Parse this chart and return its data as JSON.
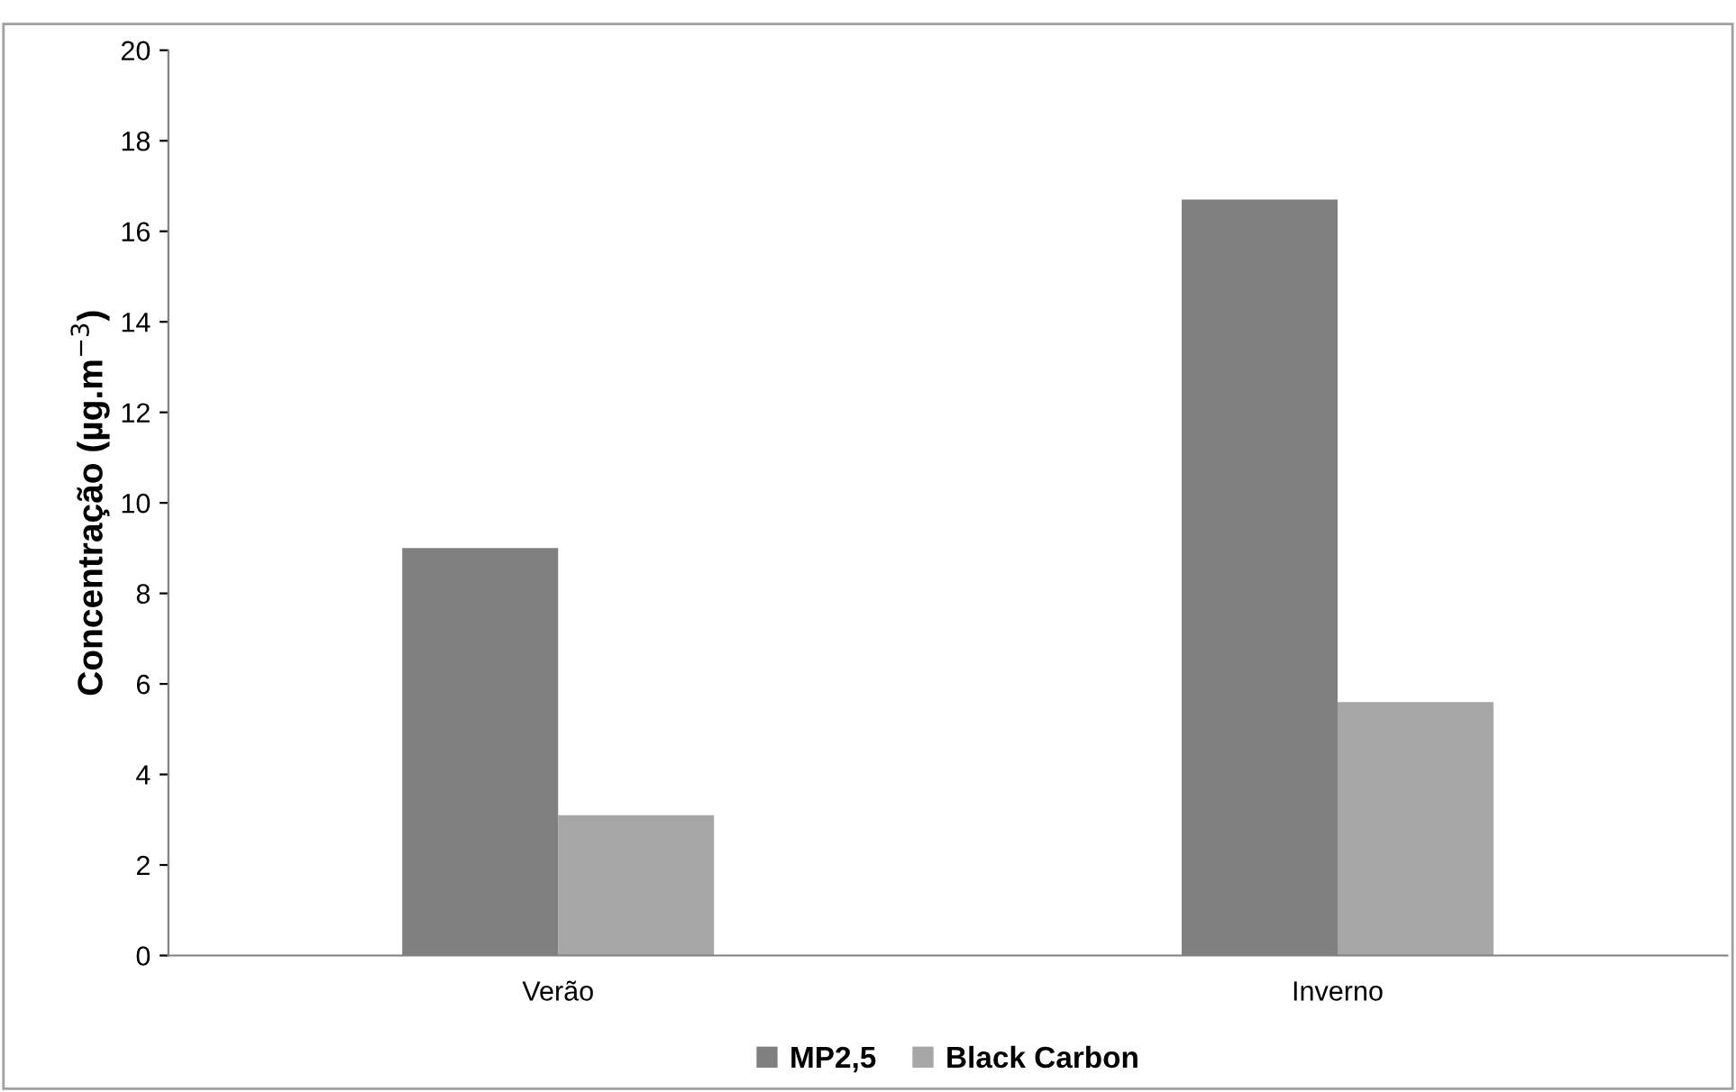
{
  "chart_data": {
    "type": "bar",
    "ylabel": "Concentração (µg.m$^{−3}$)",
    "categories": [
      "Verão",
      "Inverno"
    ],
    "series": [
      {
        "name": "MP2,5",
        "color": "#808080",
        "values": [
          9.0,
          16.7
        ]
      },
      {
        "name": "Black Carbon",
        "color": "#a6a6a6",
        "values": [
          3.1,
          5.6
        ]
      }
    ],
    "ylim": [
      0,
      20
    ],
    "yticks": [
      0,
      2,
      4,
      6,
      8,
      10,
      12,
      14,
      16,
      18,
      20
    ],
    "grid": false,
    "legend": "bottom"
  }
}
